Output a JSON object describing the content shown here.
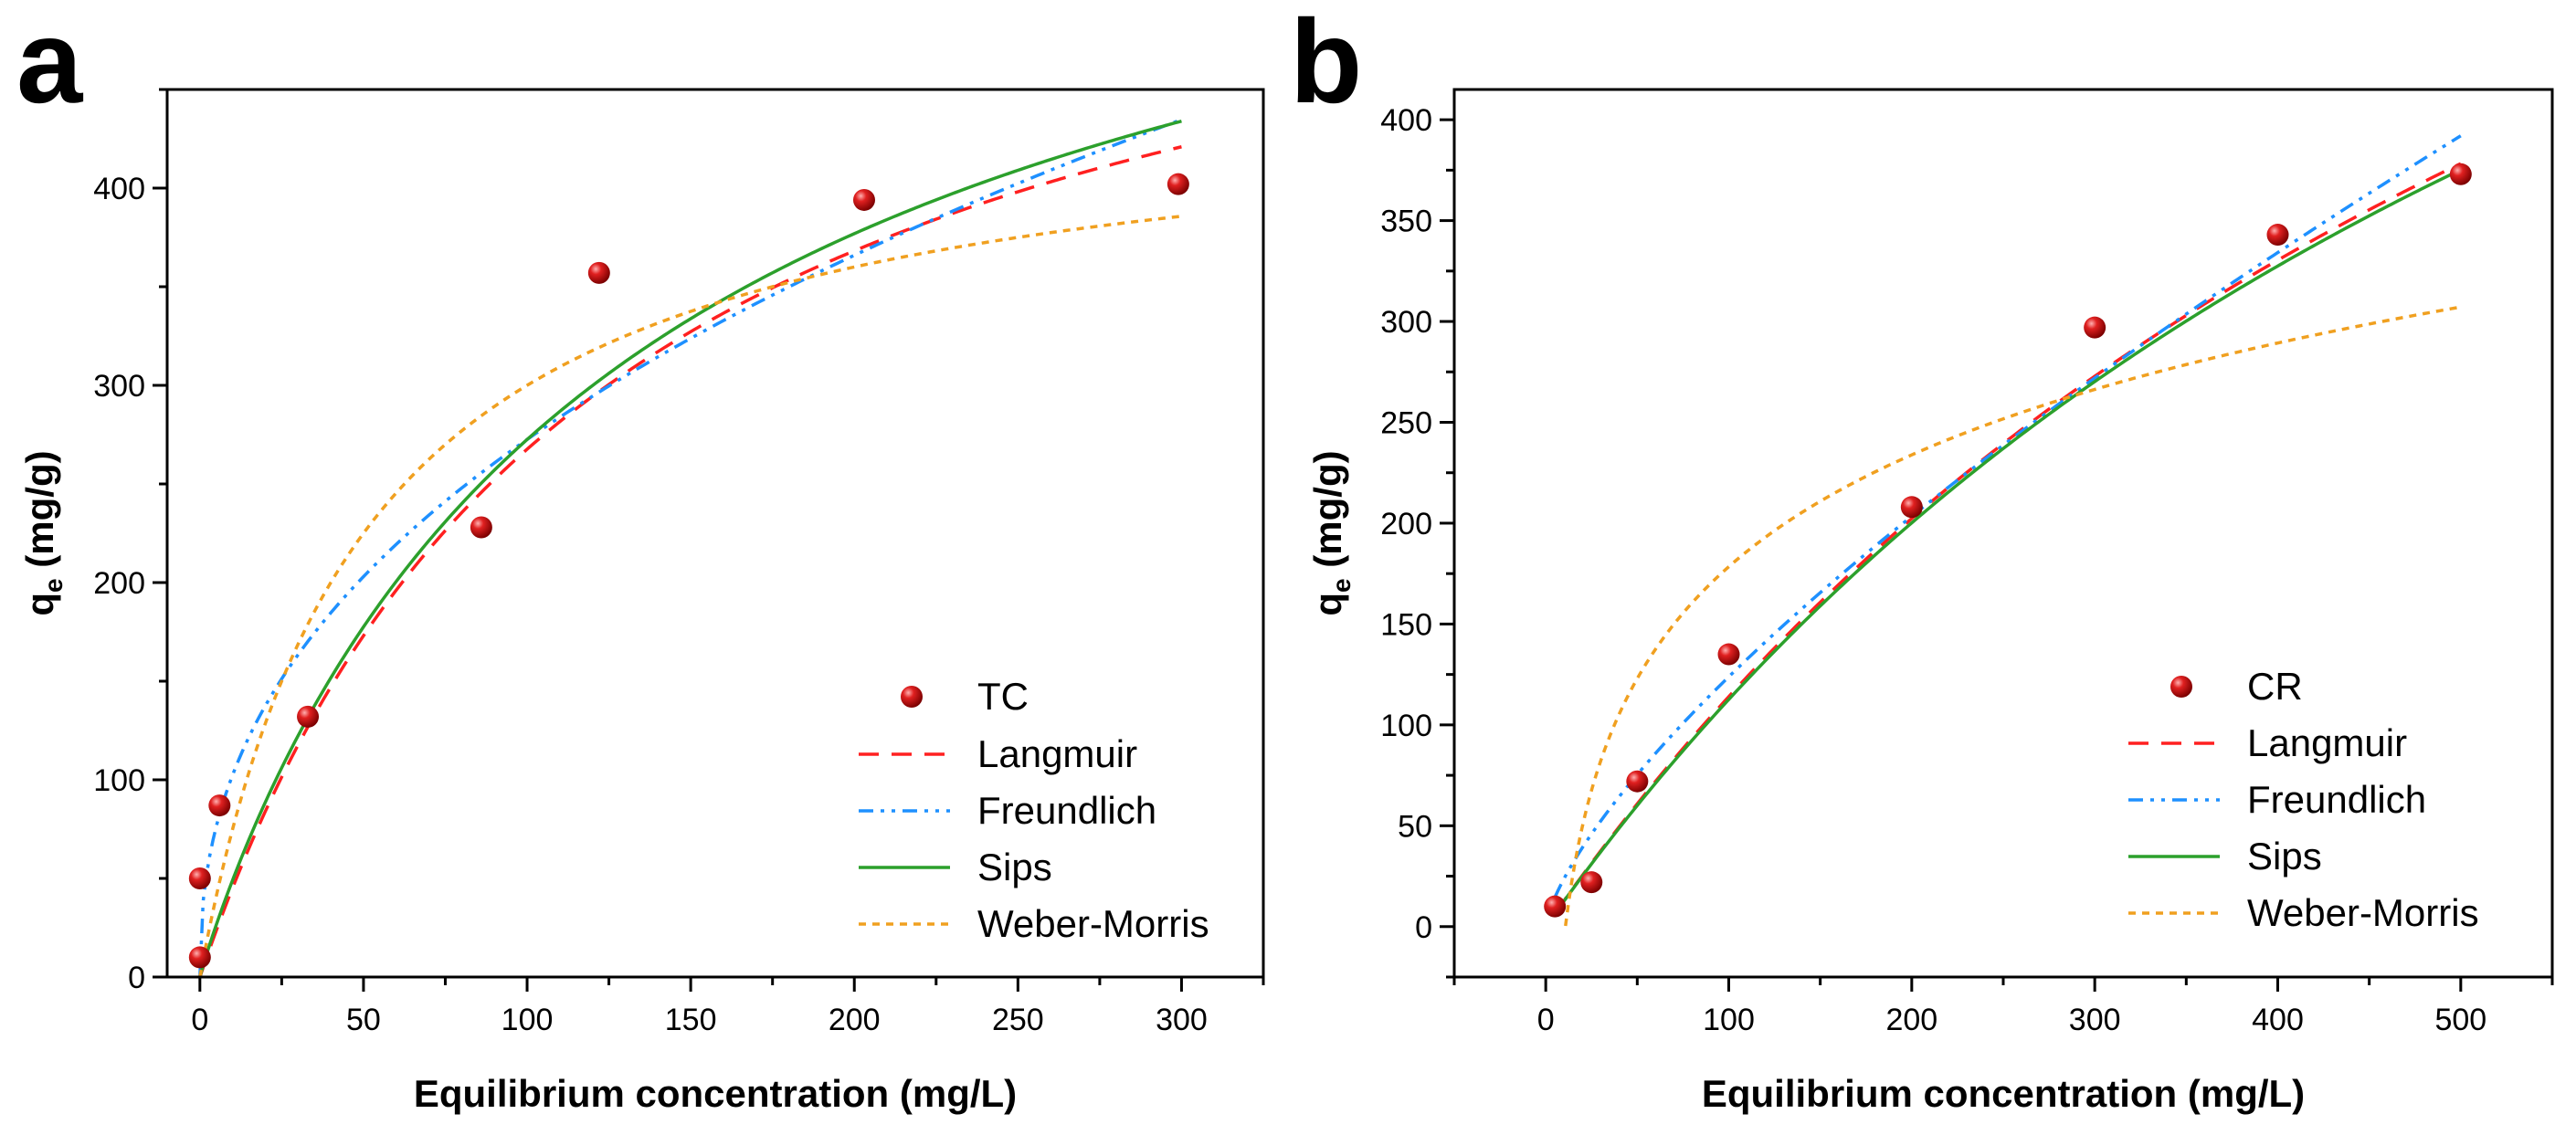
{
  "colors": {
    "marker": "#d81b1b",
    "langmuir": "#ff2020",
    "freundlich": "#1e90ff",
    "sips": "#2ca02c",
    "weber_morris": "#f0a020"
  },
  "chart_data": [
    {
      "id": "a",
      "panel_label": "a",
      "type": "scatter",
      "xlabel": "Equilibrium concentration (mg/L)",
      "ylabel": "q",
      "ylabel_sub": "e",
      "ylabel_unit": " (mg/g)",
      "xlim": [
        -10,
        325
      ],
      "ylim": [
        0,
        450
      ],
      "xticks": [
        0,
        50,
        100,
        150,
        200,
        250,
        300
      ],
      "yticks": [
        0,
        100,
        200,
        300,
        400
      ],
      "points_name": "TC",
      "points": [
        {
          "x": 0,
          "y": 10
        },
        {
          "x": 0,
          "y": 50
        },
        {
          "x": 6,
          "y": 87
        },
        {
          "x": 33,
          "y": 132
        },
        {
          "x": 86,
          "y": 228
        },
        {
          "x": 122,
          "y": 357
        },
        {
          "x": 203,
          "y": 394
        },
        {
          "x": 299,
          "y": 402
        }
      ],
      "fit_range": [
        0,
        300
      ],
      "series": [
        {
          "name": "Langmuir",
          "color_key": "langmuir",
          "dash": "22,14",
          "model": "langmuir",
          "params": {
            "qm": 590,
            "K": 0.0083
          }
        },
        {
          "name": "Freundlich",
          "color_key": "freundlich",
          "dash": "16,8,4,8,4,8",
          "model": "freundlich",
          "params": {
            "K": 38.5,
            "n": 0.425
          }
        },
        {
          "name": "Sips",
          "color_key": "sips",
          "dash": "",
          "model": "sips",
          "params": {
            "qm": 640,
            "K": 0.0073,
            "n": 0.95
          }
        },
        {
          "name": "Weber-Morris",
          "color_key": "weber_morris",
          "dash": "8,7",
          "model": "langmuir",
          "params": {
            "qm": 450,
            "K": 0.02
          }
        }
      ]
    },
    {
      "id": "b",
      "panel_label": "b",
      "type": "scatter",
      "xlabel": "Equilibrium concentration (mg/L)",
      "ylabel": "q",
      "ylabel_sub": "e",
      "ylabel_unit": " (mg/g)",
      "xlim": [
        -50,
        550
      ],
      "ylim": [
        -25,
        415
      ],
      "xticks": [
        0,
        100,
        200,
        300,
        400,
        500
      ],
      "yticks": [
        0,
        50,
        100,
        150,
        200,
        250,
        300,
        350,
        400
      ],
      "points_name": "CR",
      "points": [
        {
          "x": 5,
          "y": 10
        },
        {
          "x": 25,
          "y": 22
        },
        {
          "x": 50,
          "y": 72
        },
        {
          "x": 100,
          "y": 135
        },
        {
          "x": 200,
          "y": 208
        },
        {
          "x": 300,
          "y": 297
        },
        {
          "x": 400,
          "y": 343
        },
        {
          "x": 500,
          "y": 373
        }
      ],
      "fit_range": [
        5,
        500
      ],
      "series": [
        {
          "name": "Langmuir",
          "color_key": "langmuir",
          "dash": "22,14",
          "model": "langmuir",
          "params": {
            "qm": 900,
            "K": 0.00145
          }
        },
        {
          "name": "Freundlich",
          "color_key": "freundlich",
          "dash": "16,8,4,8,4,8",
          "model": "freundlich",
          "params": {
            "K": 4.58,
            "n": 0.716
          }
        },
        {
          "name": "Sips",
          "color_key": "sips",
          "dash": "",
          "model": "langmuir",
          "params": {
            "qm": 900,
            "K": 0.00143
          }
        },
        {
          "name": "Weber-Morris",
          "color_key": "weber_morris",
          "dash": "8,7",
          "model": "log",
          "params": {
            "a": 80,
            "b": -190
          },
          "start": 10.8
        }
      ]
    }
  ]
}
